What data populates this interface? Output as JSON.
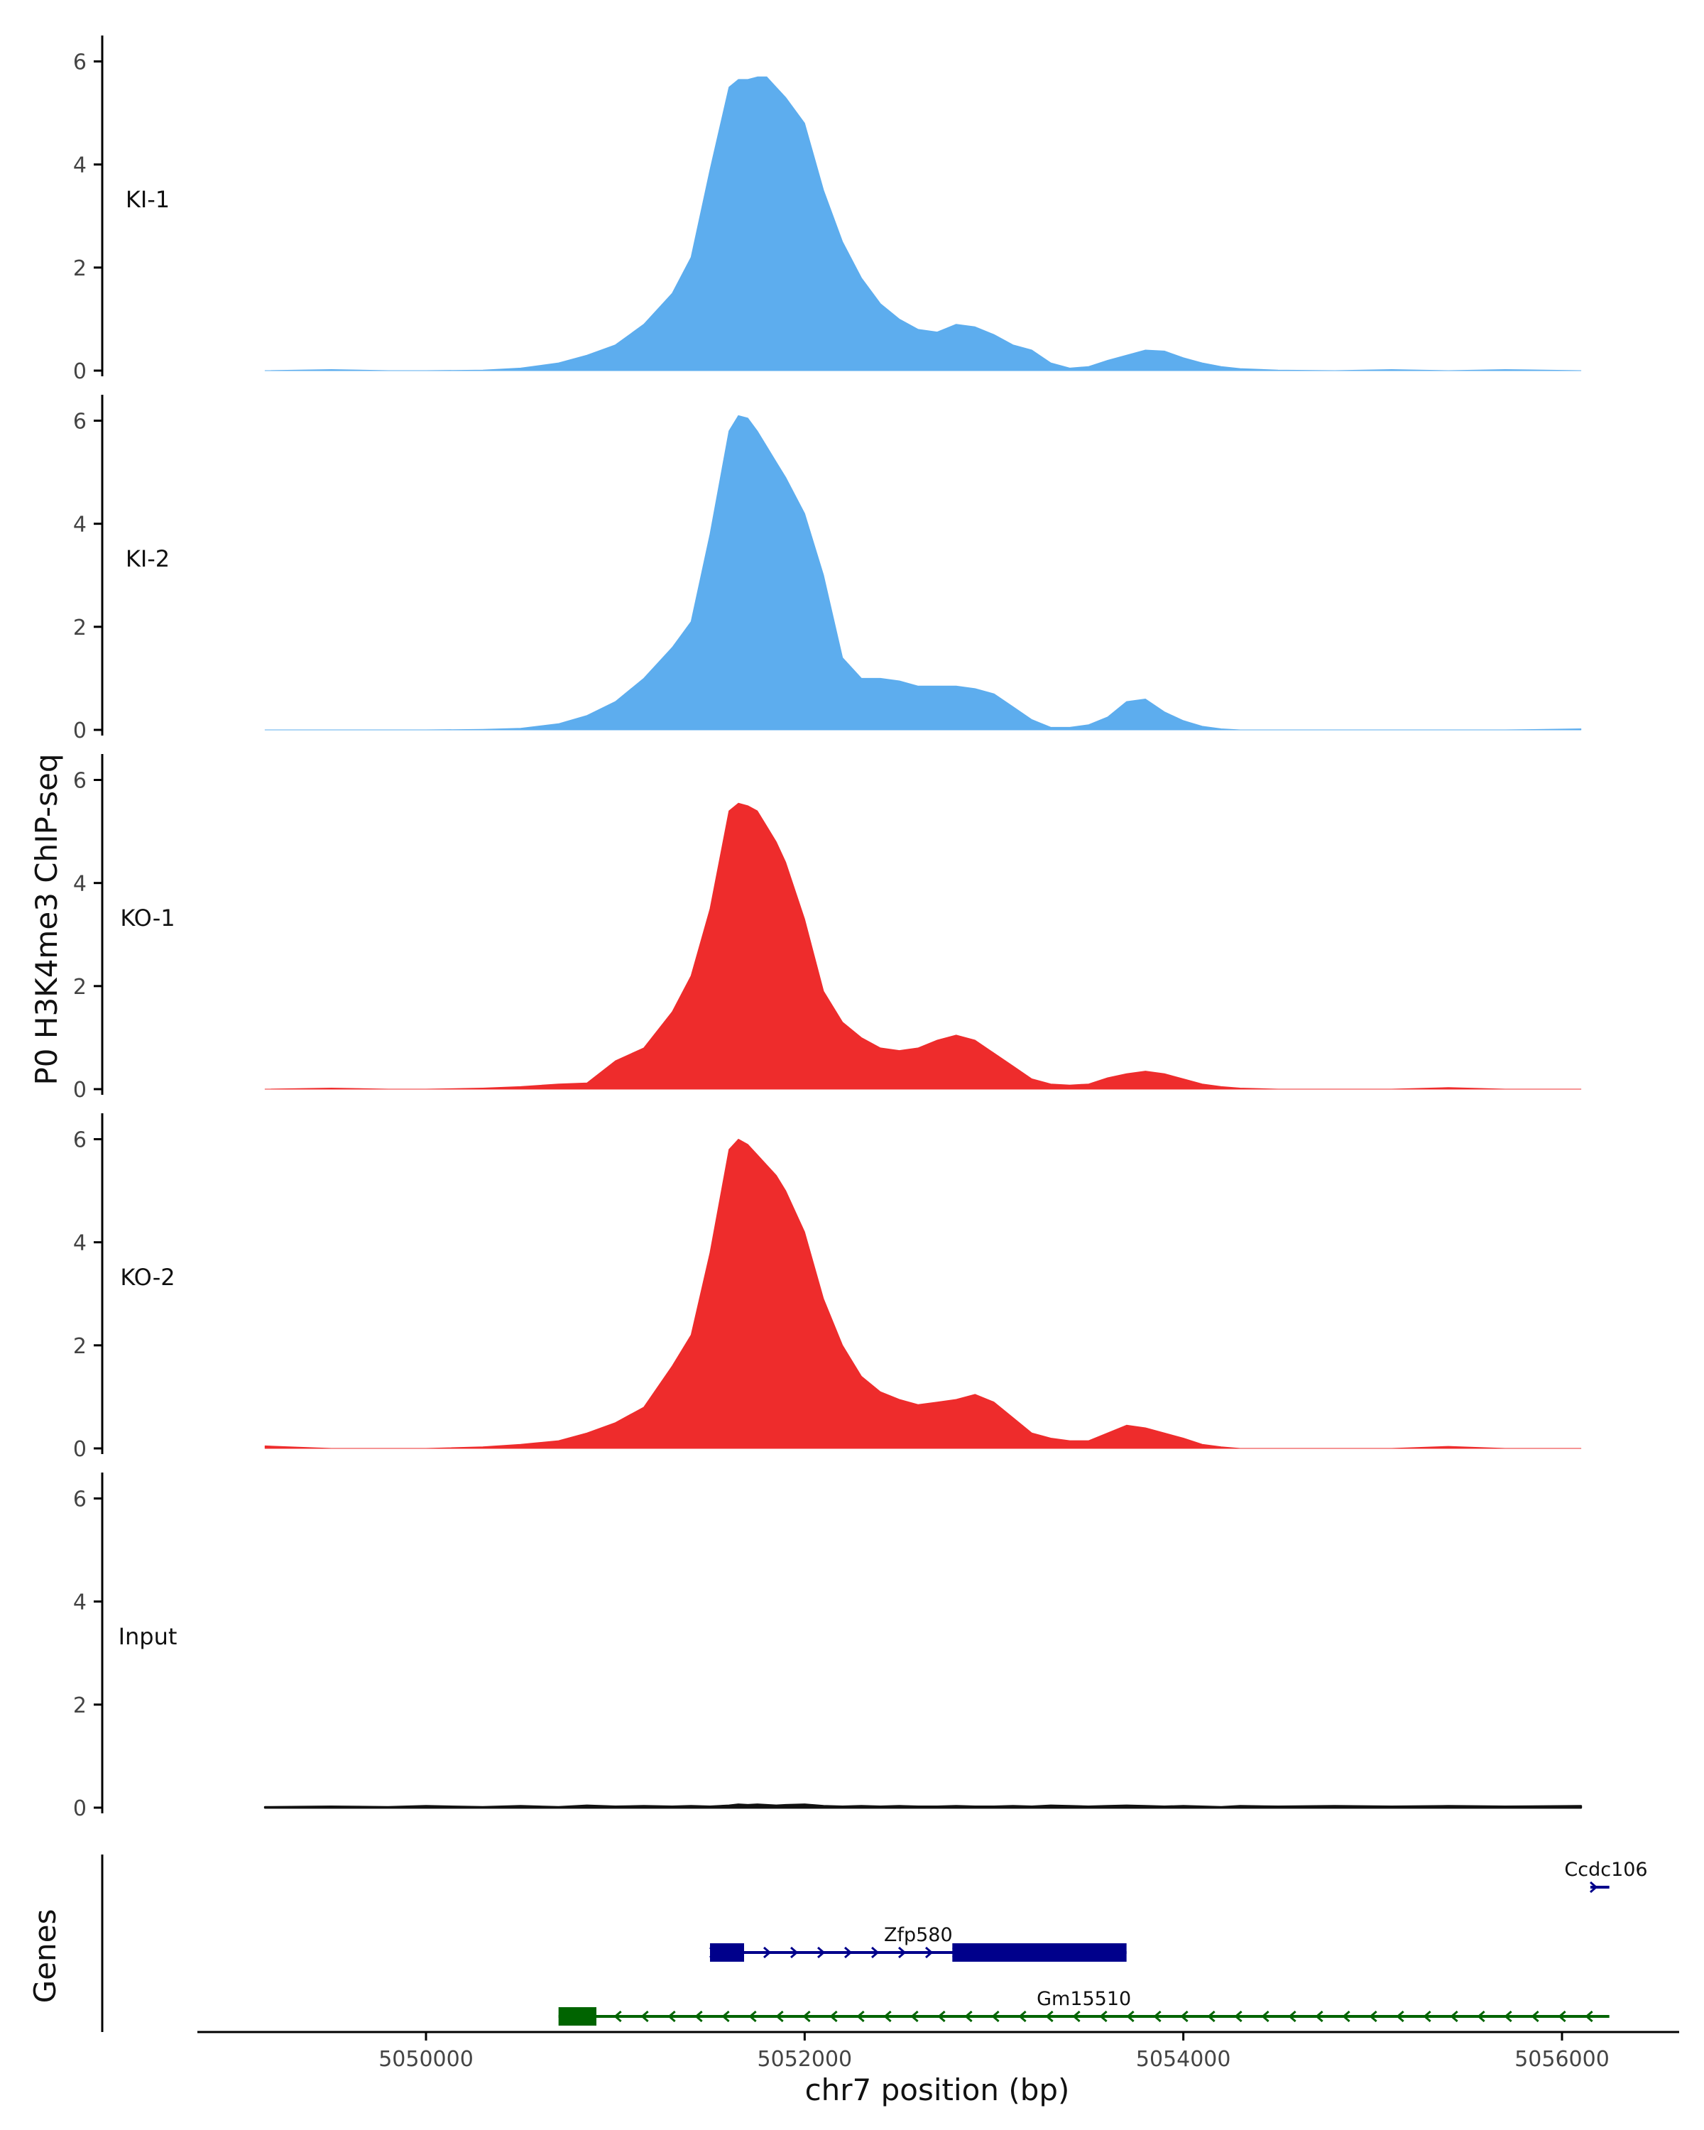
{
  "chart_data": {
    "type": "area",
    "title": "",
    "ylabel": "P0 H3K4me3 ChIP-seq",
    "xlabel": "chr7 position (bp)",
    "xlim": [
      5048800,
      5056600
    ],
    "ylim": [
      0,
      6.3
    ],
    "y_ticks": [
      0,
      2,
      4,
      6
    ],
    "x_ticks": [
      5050000,
      5052000,
      5054000,
      5056000
    ],
    "x_tick_labels": [
      "5050000",
      "5052000",
      "5054000",
      "5056000"
    ],
    "x": [
      5049150,
      5049500,
      5049800,
      5050000,
      5050300,
      5050500,
      5050700,
      5050850,
      5051000,
      5051150,
      5051300,
      5051400,
      5051500,
      5051600,
      5051650,
      5051700,
      5051750,
      5051800,
      5051850,
      5051900,
      5052000,
      5052100,
      5052200,
      5052300,
      5052400,
      5052500,
      5052600,
      5052700,
      5052800,
      5052900,
      5053000,
      5053100,
      5053200,
      5053300,
      5053400,
      5053500,
      5053600,
      5053700,
      5053800,
      5053900,
      5054000,
      5054100,
      5054200,
      5054300,
      5054500,
      5054800,
      5055100,
      5055400,
      5055700,
      5056100
    ],
    "series": [
      {
        "name": "KI-1",
        "color": "#5DADEE",
        "values": [
          0.0,
          0.02,
          0.0,
          0.0,
          0.01,
          0.05,
          0.15,
          0.3,
          0.5,
          0.9,
          1.5,
          2.2,
          3.9,
          5.5,
          5.65,
          5.65,
          5.7,
          5.7,
          5.5,
          5.3,
          4.8,
          3.5,
          2.5,
          1.8,
          1.3,
          1.0,
          0.8,
          0.75,
          0.9,
          0.85,
          0.7,
          0.5,
          0.4,
          0.15,
          0.05,
          0.08,
          0.2,
          0.3,
          0.4,
          0.38,
          0.25,
          0.15,
          0.08,
          0.04,
          0.01,
          0.0,
          0.02,
          0.0,
          0.02,
          0.0
        ]
      },
      {
        "name": "KI-2",
        "color": "#5DADEE",
        "values": [
          0.0,
          0.0,
          0.0,
          0.0,
          0.01,
          0.03,
          0.12,
          0.28,
          0.55,
          1.0,
          1.6,
          2.1,
          3.8,
          5.8,
          6.1,
          6.05,
          5.8,
          5.5,
          5.2,
          4.9,
          4.2,
          3.0,
          1.4,
          1.0,
          1.0,
          0.95,
          0.85,
          0.85,
          0.85,
          0.8,
          0.7,
          0.45,
          0.2,
          0.05,
          0.05,
          0.1,
          0.25,
          0.55,
          0.6,
          0.35,
          0.18,
          0.07,
          0.02,
          0.0,
          0.0,
          0.0,
          0.0,
          0.0,
          0.0,
          0.02
        ]
      },
      {
        "name": "KO-1",
        "color": "#EE2C2C",
        "values": [
          0.0,
          0.02,
          0.0,
          0.0,
          0.02,
          0.05,
          0.1,
          0.12,
          0.55,
          0.8,
          1.5,
          2.2,
          3.5,
          5.4,
          5.55,
          5.5,
          5.4,
          5.1,
          4.8,
          4.4,
          3.3,
          1.9,
          1.3,
          1.0,
          0.8,
          0.75,
          0.8,
          0.95,
          1.05,
          0.95,
          0.7,
          0.45,
          0.2,
          0.1,
          0.08,
          0.1,
          0.22,
          0.3,
          0.35,
          0.3,
          0.2,
          0.1,
          0.05,
          0.02,
          0.0,
          0.0,
          0.0,
          0.03,
          0.0,
          0.0
        ]
      },
      {
        "name": "KO-2",
        "color": "#EE2C2C",
        "values": [
          0.05,
          0.0,
          0.0,
          0.0,
          0.03,
          0.08,
          0.15,
          0.3,
          0.5,
          0.8,
          1.6,
          2.2,
          3.8,
          5.8,
          6.0,
          5.9,
          5.7,
          5.5,
          5.3,
          5.0,
          4.2,
          2.9,
          2.0,
          1.4,
          1.1,
          0.95,
          0.85,
          0.9,
          0.95,
          1.05,
          0.9,
          0.6,
          0.3,
          0.2,
          0.15,
          0.15,
          0.3,
          0.45,
          0.4,
          0.3,
          0.2,
          0.08,
          0.03,
          0.0,
          0.0,
          0.0,
          0.0,
          0.04,
          0.0,
          0.0
        ]
      },
      {
        "name": "Input",
        "color": "#111111",
        "values": [
          0.01,
          0.02,
          0.01,
          0.03,
          0.01,
          0.03,
          0.01,
          0.04,
          0.02,
          0.03,
          0.02,
          0.03,
          0.02,
          0.04,
          0.06,
          0.05,
          0.06,
          0.05,
          0.04,
          0.05,
          0.06,
          0.03,
          0.02,
          0.03,
          0.02,
          0.03,
          0.02,
          0.02,
          0.03,
          0.02,
          0.02,
          0.03,
          0.02,
          0.04,
          0.03,
          0.02,
          0.03,
          0.04,
          0.03,
          0.02,
          0.03,
          0.02,
          0.01,
          0.03,
          0.02,
          0.03,
          0.02,
          0.03,
          0.02,
          0.03
        ]
      }
    ],
    "genes_panel": {
      "ylabel": "Genes",
      "genes": [
        {
          "name": "Ccdc106",
          "color": "#00008B",
          "strand": "+",
          "row": 0,
          "start": 5056150,
          "end": 5056250,
          "exons": []
        },
        {
          "name": "Zfp580",
          "color": "#00008B",
          "strand": "+",
          "row": 1,
          "start": 5051500,
          "end": 5053700,
          "exons": [
            [
              5051500,
              5051680
            ],
            [
              5052780,
              5053700
            ]
          ]
        },
        {
          "name": "Gm15510",
          "color": "#006400",
          "strand": "-",
          "row": 2,
          "start": 5050700,
          "end": 5056250,
          "exons": [
            [
              5050700,
              5050900
            ]
          ]
        }
      ]
    }
  }
}
